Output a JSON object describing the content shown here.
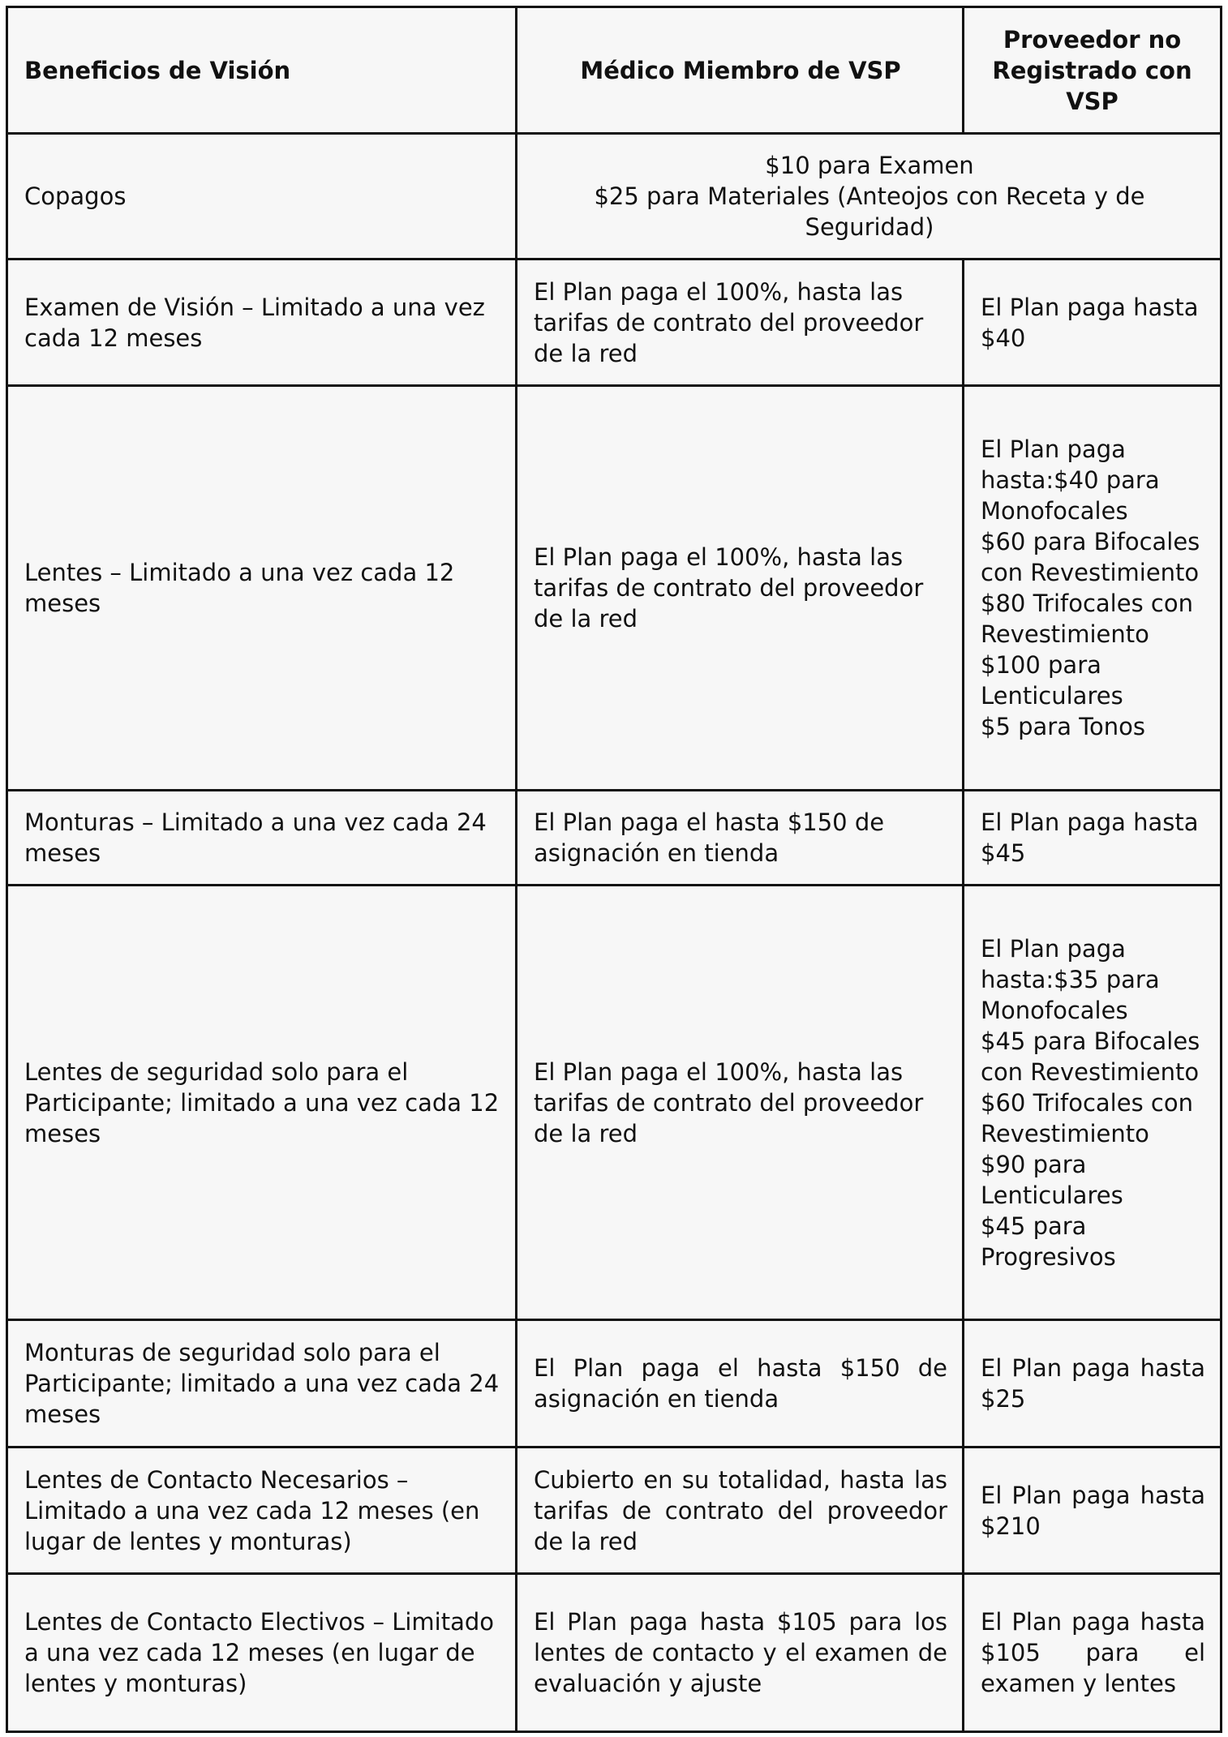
{
  "header": [
    "Beneficios de Visión",
    "Médico Miembro de VSP",
    "Proveedor no Registrado con VSP"
  ],
  "copagos": {
    "label": "Copagos",
    "value": "$10 para Examen\n$25 para Materiales (Anteojos con Receta y de Seguridad)"
  },
  "rows": [
    {
      "benefit": "Examen de Visión – Limitado a una vez cada 12 meses",
      "vsp": "El Plan paga el 100%, hasta las tarifas de contrato del proveedor de la red",
      "non_vsp": "El Plan paga hasta $40"
    },
    {
      "benefit": "Lentes – Limitado a una vez cada 12 meses",
      "vsp": "El Plan paga el 100%, hasta las tarifas de contrato del proveedor de la red",
      "non_vsp": "El Plan paga hasta:$40 para Monofocales\n$60 para Bifocales con Revestimiento\n$80 Trifocales con Revestimiento\n$100 para Lenticulares\n$5 para Tonos"
    },
    {
      "benefit": "Monturas – Limitado a una vez cada 24 meses",
      "vsp": "El Plan paga el hasta $150 de asignación en tienda",
      "non_vsp": "El Plan paga hasta $45"
    },
    {
      "benefit": "Lentes de seguridad solo para el Participante; limitado a una vez cada 12 meses",
      "vsp": "El Plan paga el 100%, hasta las tarifas de contrato del proveedor de la red",
      "non_vsp": "El Plan paga hasta:$35 para Monofocales\n$45 para Bifocales con Revestimiento\n$60 Trifocales con Revestimiento\n$90 para Lenticulares\n$45 para Progresivos"
    },
    {
      "benefit": "Monturas de seguridad solo para el Participante; limitado a una vez cada 24 meses",
      "vsp": "El Plan paga el hasta $150 de asignación en tienda",
      "non_vsp": "El Plan paga hasta $25"
    },
    {
      "benefit": "Lentes de Contacto Necesarios – Limitado a una vez cada 12 meses (en lugar de lentes y monturas)",
      "vsp": "Cubierto en su totalidad, hasta las tarifas de contrato del proveedor de la red",
      "non_vsp": "El Plan paga hasta $210"
    },
    {
      "benefit": "Lentes de Contacto Electivos – Limitado a una vez cada 12 meses (en lugar de lentes y monturas)",
      "vsp": "El Plan paga hasta $105 para los lentes de contacto y el examen de evaluación y ajuste",
      "non_vsp": "El Plan paga hasta $105 para el examen y lentes"
    }
  ]
}
